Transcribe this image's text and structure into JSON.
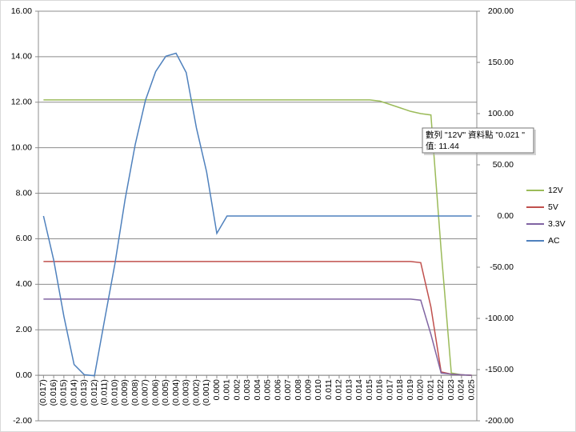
{
  "chart_data": {
    "type": "line",
    "x": [
      -0.017,
      -0.016,
      -0.015,
      -0.014,
      -0.013,
      -0.012,
      -0.011,
      -0.01,
      -0.009,
      -0.008,
      -0.007,
      -0.006,
      -0.005,
      -0.004,
      -0.003,
      -0.002,
      -0.001,
      0.0,
      0.001,
      0.002,
      0.003,
      0.004,
      0.005,
      0.006,
      0.007,
      0.008,
      0.009,
      0.01,
      0.011,
      0.012,
      0.013,
      0.014,
      0.015,
      0.016,
      0.017,
      0.018,
      0.019,
      0.02,
      0.021,
      0.022,
      0.023,
      0.024,
      0.025
    ],
    "xlim": [
      -0.0175,
      0.0255
    ],
    "xticks": [
      {
        "value": -0.017,
        "label": "(0.017)"
      },
      {
        "value": -0.016,
        "label": "(0.016)"
      },
      {
        "value": -0.015,
        "label": "(0.015)"
      },
      {
        "value": -0.014,
        "label": "(0.014)"
      },
      {
        "value": -0.013,
        "label": "(0.013)"
      },
      {
        "value": -0.012,
        "label": "(0.012)"
      },
      {
        "value": -0.011,
        "label": "(0.011)"
      },
      {
        "value": -0.01,
        "label": "(0.010)"
      },
      {
        "value": -0.009,
        "label": "(0.009)"
      },
      {
        "value": -0.008,
        "label": "(0.008)"
      },
      {
        "value": -0.007,
        "label": "(0.007)"
      },
      {
        "value": -0.006,
        "label": "(0.006)"
      },
      {
        "value": -0.005,
        "label": "(0.005)"
      },
      {
        "value": -0.004,
        "label": "(0.004)"
      },
      {
        "value": -0.003,
        "label": "(0.003)"
      },
      {
        "value": -0.002,
        "label": "(0.002)"
      },
      {
        "value": -0.001,
        "label": "(0.001)"
      },
      {
        "value": 0,
        "label": "0.000"
      },
      {
        "value": 0.001,
        "label": "0.001"
      },
      {
        "value": 0.002,
        "label": "0.002"
      },
      {
        "value": 0.003,
        "label": "0.003"
      },
      {
        "value": 0.004,
        "label": "0.004"
      },
      {
        "value": 0.005,
        "label": "0.005"
      },
      {
        "value": 0.006,
        "label": "0.006"
      },
      {
        "value": 0.007,
        "label": "0.007"
      },
      {
        "value": 0.008,
        "label": "0.008"
      },
      {
        "value": 0.009,
        "label": "0.009"
      },
      {
        "value": 0.01,
        "label": "0.010"
      },
      {
        "value": 0.011,
        "label": "0.011"
      },
      {
        "value": 0.012,
        "label": "0.012"
      },
      {
        "value": 0.013,
        "label": "0.013"
      },
      {
        "value": 0.014,
        "label": "0.014"
      },
      {
        "value": 0.015,
        "label": "0.015"
      },
      {
        "value": 0.016,
        "label": "0.016"
      },
      {
        "value": 0.017,
        "label": "0.017"
      },
      {
        "value": 0.018,
        "label": "0.018"
      },
      {
        "value": 0.019,
        "label": "0.019"
      },
      {
        "value": 0.02,
        "label": "0.020"
      },
      {
        "value": 0.021,
        "label": "0.021"
      },
      {
        "value": 0.022,
        "label": "0.022"
      },
      {
        "value": 0.023,
        "label": "0.023"
      },
      {
        "value": 0.024,
        "label": "0.024"
      },
      {
        "value": 0.025,
        "label": "0.025"
      }
    ],
    "ylim": [
      -2,
      16
    ],
    "yticks": [
      {
        "value": -2,
        "label": "-2.00"
      },
      {
        "value": 0,
        "label": "0.00"
      },
      {
        "value": 2,
        "label": "2.00"
      },
      {
        "value": 4,
        "label": "4.00"
      },
      {
        "value": 6,
        "label": "6.00"
      },
      {
        "value": 8,
        "label": "8.00"
      },
      {
        "value": 10,
        "label": "10.00"
      },
      {
        "value": 12,
        "label": "12.00"
      },
      {
        "value": 14,
        "label": "14.00"
      },
      {
        "value": 16,
        "label": "16.00"
      }
    ],
    "y2lim": [
      -200,
      200
    ],
    "y2ticks": [
      {
        "value": -200,
        "label": "-200.00"
      },
      {
        "value": -150,
        "label": "-150.00"
      },
      {
        "value": -100,
        "label": "-100.00"
      },
      {
        "value": -50,
        "label": "-50.00"
      },
      {
        "value": 0,
        "label": "0.00"
      },
      {
        "value": 50,
        "label": "50.00"
      },
      {
        "value": 100,
        "label": "100.00"
      },
      {
        "value": 150,
        "label": "150.00"
      },
      {
        "value": 200,
        "label": "200.00"
      }
    ],
    "grid": true,
    "legend": "right",
    "series": [
      {
        "name": "12V",
        "color": "#9bbb59",
        "values": [
          12.1,
          12.1,
          12.1,
          12.1,
          12.1,
          12.1,
          12.1,
          12.1,
          12.1,
          12.1,
          12.1,
          12.1,
          12.1,
          12.1,
          12.1,
          12.1,
          12.1,
          12.1,
          12.1,
          12.1,
          12.1,
          12.1,
          12.1,
          12.1,
          12.1,
          12.1,
          12.1,
          12.1,
          12.1,
          12.1,
          12.1,
          12.1,
          12.1,
          12.05,
          11.9,
          11.75,
          11.6,
          11.5,
          11.44,
          5.5,
          0.1,
          0.02,
          0
        ]
      },
      {
        "name": "5V",
        "color": "#c0504d",
        "values": [
          5,
          5,
          5,
          5,
          5,
          5,
          5,
          5,
          5,
          5,
          5,
          5,
          5,
          5,
          5,
          5,
          5,
          5,
          5,
          5,
          5,
          5,
          5,
          5,
          5,
          5,
          5,
          5,
          5,
          5,
          5,
          5,
          5,
          5,
          5,
          5,
          5,
          4.95,
          3.0,
          0.15,
          0.05,
          0.02,
          0
        ]
      },
      {
        "name": "3.3V",
        "color": "#8064a2",
        "values": [
          3.35,
          3.35,
          3.35,
          3.35,
          3.35,
          3.35,
          3.35,
          3.35,
          3.35,
          3.35,
          3.35,
          3.35,
          3.35,
          3.35,
          3.35,
          3.35,
          3.35,
          3.35,
          3.35,
          3.35,
          3.35,
          3.35,
          3.35,
          3.35,
          3.35,
          3.35,
          3.35,
          3.35,
          3.35,
          3.35,
          3.35,
          3.35,
          3.35,
          3.35,
          3.35,
          3.35,
          3.35,
          3.3,
          1.8,
          0.1,
          0.05,
          0.02,
          0
        ]
      },
      {
        "name": "AC",
        "color": "#4f81bd",
        "axis": "y2",
        "values": [
          0,
          -43,
          -98,
          -145,
          -155,
          -156,
          -101,
          -47,
          16,
          70,
          113,
          141,
          156,
          159,
          140,
          86,
          43,
          -17,
          0,
          0,
          0,
          0,
          0,
          0,
          0,
          0,
          0,
          0,
          0,
          0,
          0,
          0,
          0,
          0,
          0,
          0,
          0,
          0,
          0,
          0,
          0,
          0,
          0
        ]
      }
    ],
    "tooltip": [
      "數列 \"12V\" 資料點 \"0.021 \"",
      "值: 11.44"
    ]
  }
}
